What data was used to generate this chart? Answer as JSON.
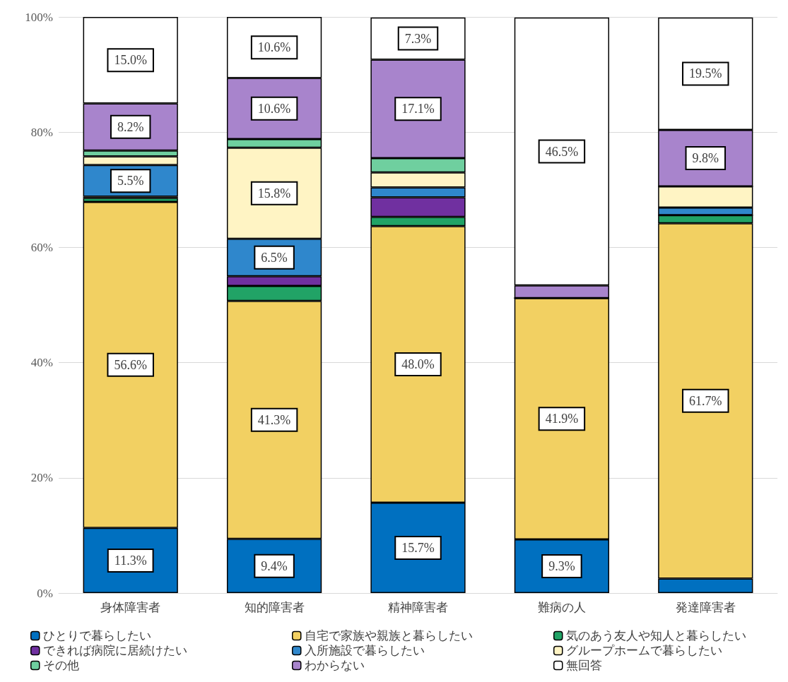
{
  "chart_data": {
    "type": "bar",
    "stacked": true,
    "categories": [
      "身体障害者",
      "知的障害者",
      "精神障害者",
      "難病の人",
      "発達障害者"
    ],
    "series": [
      {
        "name": "ひとりで暮らしたい",
        "color": "#0070c0",
        "values": [
          11.3,
          9.4,
          15.7,
          9.3,
          2.5
        ],
        "value_labels": [
          "11.3%",
          "9.4%",
          "15.7%",
          "9.3%",
          null
        ]
      },
      {
        "name": "自宅で家族や親族と暮らしたい",
        "color": "#f2d062",
        "values": [
          56.6,
          41.3,
          48.0,
          41.9,
          61.7
        ],
        "value_labels": [
          "56.6%",
          "41.3%",
          "48.0%",
          "41.9%",
          "61.7%"
        ]
      },
      {
        "name": "気のあう友人や知人と暮らしたい",
        "color": "#21a366",
        "values": [
          0.7,
          2.6,
          1.6,
          0,
          1.4
        ]
      },
      {
        "name": "できれば病院に居続けたい",
        "color": "#7030a0",
        "values": [
          0.2,
          1.7,
          3.4,
          0,
          0
        ]
      },
      {
        "name": "入所施設で暮らしたい",
        "color": "#2f87cc",
        "values": [
          5.5,
          6.5,
          1.7,
          0,
          1.3
        ],
        "value_labels": [
          "5.5%",
          "6.5%",
          null,
          null,
          null
        ]
      },
      {
        "name": "グループホームで暮らしたい",
        "color": "#fff4c4",
        "values": [
          1.5,
          15.8,
          2.6,
          0,
          3.7
        ],
        "value_labels": [
          null,
          "15.8%",
          null,
          null,
          null
        ]
      },
      {
        "name": "その他",
        "color": "#6fcf9f",
        "values": [
          1.0,
          1.5,
          2.5,
          0,
          0
        ]
      },
      {
        "name": "わからない",
        "color": "#a884cc",
        "values": [
          8.2,
          10.6,
          17.1,
          2.2,
          9.8
        ],
        "value_labels": [
          "8.2%",
          "10.6%",
          "17.1%",
          null,
          "9.8%"
        ]
      },
      {
        "name": "無回答",
        "color": "#ffffff",
        "values": [
          15.0,
          10.6,
          7.3,
          46.5,
          19.5
        ],
        "value_labels": [
          "15.0%",
          "10.6%",
          "7.3%",
          "46.5%",
          "19.5%"
        ]
      }
    ],
    "ylim": [
      0,
      100
    ],
    "yticks": [
      {
        "value": 0,
        "label": "0%"
      },
      {
        "value": 20,
        "label": "20%"
      },
      {
        "value": 40,
        "label": "40%"
      },
      {
        "value": 60,
        "label": "60%"
      },
      {
        "value": 80,
        "label": "80%"
      },
      {
        "value": 100,
        "label": "100%"
      }
    ],
    "grid": "y",
    "legend": "bottom"
  }
}
